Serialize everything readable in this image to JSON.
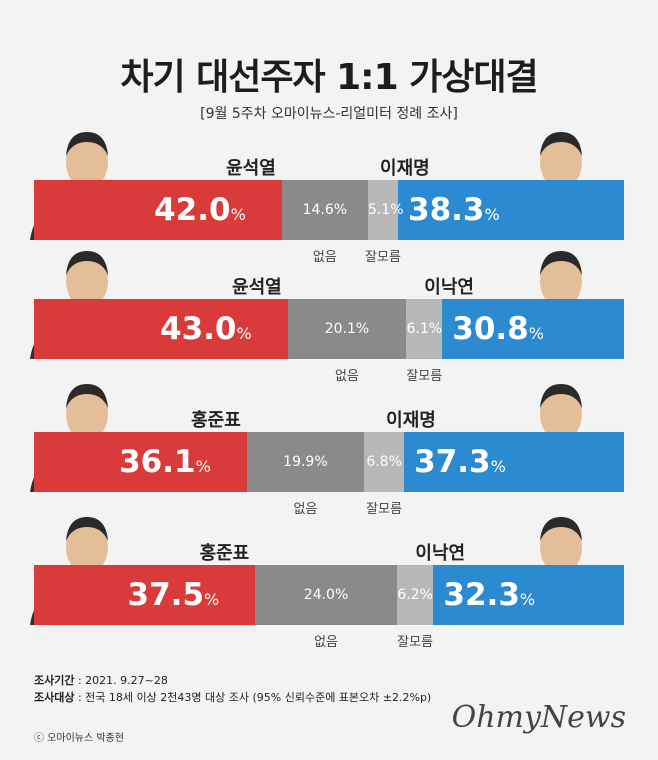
{
  "title": "차기 대선주자 1:1 가상대결",
  "subtitle": "[9월 5주차 오마이뉴스-리얼미터 정례 조사]",
  "labels": {
    "none": "없음",
    "unknown": "잘모름",
    "pct": "%"
  },
  "colors": {
    "left": "#d93a3a",
    "none": "#8a8a8a",
    "unknown": "#b8b8b8",
    "right": "#2c8ad0"
  },
  "chart_data": {
    "type": "bar",
    "orientation": "horizontal-stacked",
    "matchups": [
      {
        "left_name": "윤석열",
        "right_name": "이재명",
        "left": "42.0",
        "none": "14.6",
        "unknown": "5.1",
        "right": "38.3"
      },
      {
        "left_name": "윤석열",
        "right_name": "이낙연",
        "left": "43.0",
        "none": "20.1",
        "unknown": "6.1",
        "right": "30.8"
      },
      {
        "left_name": "홍준표",
        "right_name": "이재명",
        "left": "36.1",
        "none": "19.9",
        "unknown": "6.8",
        "right": "37.3"
      },
      {
        "left_name": "홍준표",
        "right_name": "이낙연",
        "left": "37.5",
        "none": "24.0",
        "unknown": "6.2",
        "right": "32.3"
      }
    ]
  },
  "footer": {
    "period_label": "조사기간",
    "period_value": ": 2021. 9.27~28",
    "target_label": "조사대상",
    "target_value": ": 전국 18세 이상 2천43명 대상 조사 (95% 신뢰수준에 표본오차 ±2.2%p)"
  },
  "credit": "ⓒ 오마이뉴스 박종현",
  "logo": "OhmyNews"
}
